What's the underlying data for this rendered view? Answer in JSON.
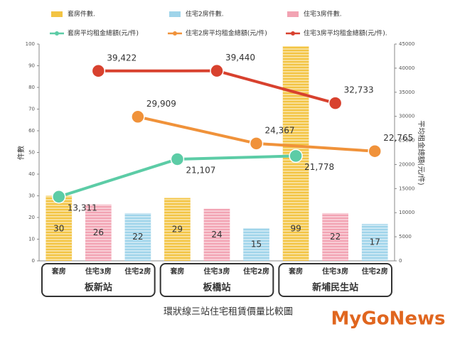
{
  "chart_data": {
    "type": "bar-line",
    "caption": "環狀線三站住宅租賃價量比較圖",
    "watermark": "MyGoNews",
    "ylabel": "件數",
    "y2label": "平均租金總額(元/件)",
    "categories": [
      "套房",
      "住宅3房",
      "住宅2房",
      "套房",
      "住宅3房",
      "住宅2房",
      "套房",
      "住宅3房",
      "住宅2房"
    ],
    "groups": [
      "板新站",
      "板橋站",
      "新埔民生站"
    ],
    "ylim": [
      0,
      100
    ],
    "yticks": [
      0,
      10,
      20,
      30,
      40,
      50,
      60,
      70,
      80,
      90,
      100
    ],
    "y2lim": [
      0,
      45000
    ],
    "y2ticks": [
      0,
      5000,
      10000,
      15000,
      20000,
      25000,
      30000,
      35000,
      40000,
      45000
    ],
    "series": [
      {
        "name": "套房件數.",
        "type": "bar",
        "color": "#f3c443",
        "values": [
          30,
          null,
          null,
          29,
          null,
          null,
          99,
          null,
          null
        ]
      },
      {
        "name": "住宅2房件數.",
        "type": "bar",
        "color": "#9fd4ea",
        "values": [
          null,
          null,
          22,
          null,
          null,
          15,
          null,
          null,
          17
        ]
      },
      {
        "name": "住宅3房件數.",
        "type": "bar",
        "color": "#f2a3b3",
        "values": [
          null,
          26,
          null,
          null,
          24,
          null,
          null,
          22,
          null
        ]
      },
      {
        "name": "套房平均租金總額(元/件)",
        "type": "line",
        "axis": "y2",
        "color": "#5ccca6",
        "values": [
          13311,
          null,
          null,
          21107,
          null,
          null,
          21778,
          null,
          null
        ],
        "value_labels": [
          "13,311",
          null,
          null,
          "21,107",
          null,
          null,
          "21,778",
          null,
          null
        ]
      },
      {
        "name": "住宅2房平均租金總額(元/件)",
        "type": "line",
        "axis": "y2",
        "color": "#f0923a",
        "values": [
          null,
          null,
          29909,
          null,
          null,
          24367,
          null,
          null,
          22765
        ],
        "value_labels": [
          null,
          null,
          "29,909",
          null,
          null,
          "24,367",
          null,
          null,
          "22,765"
        ]
      },
      {
        "name": "住宅3房平均租金總額(元/件).",
        "type": "line",
        "axis": "y2",
        "color": "#d8412e",
        "values": [
          null,
          39422,
          null,
          null,
          39440,
          null,
          null,
          32733,
          null
        ],
        "value_labels": [
          null,
          "39,422",
          null,
          null,
          "39,440",
          null,
          null,
          "32,733",
          null
        ]
      }
    ]
  }
}
